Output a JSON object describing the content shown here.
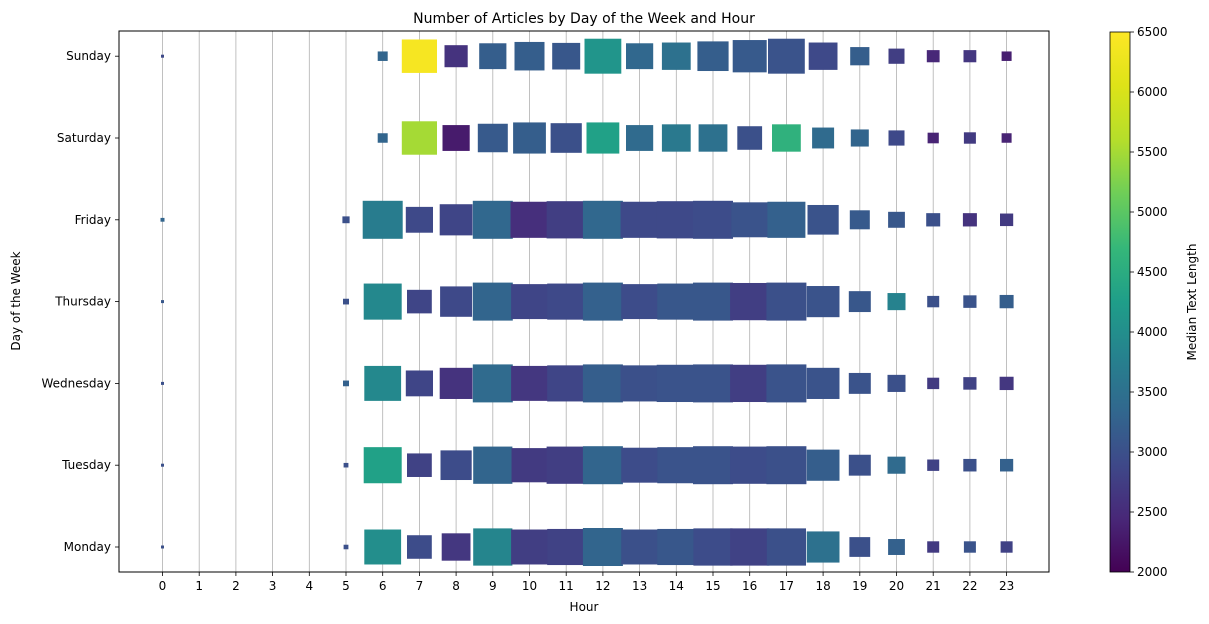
{
  "chart_data": {
    "type": "heatmap",
    "title": "Number of Articles by Day of the Week and Hour",
    "xlabel": "Hour",
    "ylabel": "Day of the Week",
    "x": [
      0,
      1,
      2,
      3,
      4,
      5,
      6,
      7,
      8,
      9,
      10,
      11,
      12,
      13,
      14,
      15,
      16,
      17,
      18,
      19,
      20,
      21,
      22,
      23
    ],
    "x_tick_labels": [
      "0",
      "1",
      "2",
      "3",
      "4",
      "5",
      "6",
      "7",
      "8",
      "9",
      "10",
      "11",
      "12",
      "13",
      "14",
      "15",
      "16",
      "17",
      "18",
      "19",
      "20",
      "21",
      "22",
      "23"
    ],
    "days": [
      "Monday",
      "Tuesday",
      "Wednesday",
      "Thursday",
      "Friday",
      "Saturday",
      "Sunday"
    ],
    "grid": "vertical",
    "colorbar": {
      "label": "Median Text Length",
      "min": 2000,
      "max": 6500,
      "ticks": [
        2000,
        2500,
        3000,
        3500,
        4000,
        4500,
        5000,
        5500,
        6000,
        6500
      ],
      "tick_labels": [
        "2000",
        "2500",
        "3000",
        "3500",
        "4000",
        "4500",
        "5000",
        "5500",
        "6000",
        "6500"
      ],
      "colormap": "viridis"
    },
    "size_note": "marker size proportional to number of articles (relative scale 0-1)",
    "series": [
      {
        "day": "Monday",
        "points": [
          {
            "hour": 0,
            "size": 0.06,
            "median": 3000
          },
          {
            "hour": 5,
            "size": 0.12,
            "median": 3000
          },
          {
            "hour": 6,
            "size": 0.92,
            "median": 4000
          },
          {
            "hour": 7,
            "size": 0.62,
            "median": 2950
          },
          {
            "hour": 8,
            "size": 0.72,
            "median": 2650
          },
          {
            "hour": 9,
            "size": 0.98,
            "median": 3850
          },
          {
            "hour": 10,
            "size": 0.92,
            "median": 2750
          },
          {
            "hour": 11,
            "size": 0.95,
            "median": 2800
          },
          {
            "hour": 12,
            "size": 1.0,
            "median": 3300
          },
          {
            "hour": 13,
            "size": 0.92,
            "median": 3000
          },
          {
            "hour": 14,
            "size": 0.95,
            "median": 3100
          },
          {
            "hour": 15,
            "size": 0.98,
            "median": 2950
          },
          {
            "hour": 16,
            "size": 0.98,
            "median": 2800
          },
          {
            "hour": 17,
            "size": 0.98,
            "median": 3000
          },
          {
            "hour": 18,
            "size": 0.82,
            "median": 3500
          },
          {
            "hour": 19,
            "size": 0.52,
            "median": 3000
          },
          {
            "hour": 20,
            "size": 0.42,
            "median": 3250
          },
          {
            "hour": 21,
            "size": 0.3,
            "median": 2700
          },
          {
            "hour": 22,
            "size": 0.3,
            "median": 3050
          },
          {
            "hour": 23,
            "size": 0.3,
            "median": 2800
          }
        ]
      },
      {
        "day": "Tuesday",
        "points": [
          {
            "hour": 0,
            "size": 0.06,
            "median": 3000
          },
          {
            "hour": 5,
            "size": 0.12,
            "median": 3000
          },
          {
            "hour": 6,
            "size": 0.95,
            "median": 4300
          },
          {
            "hour": 7,
            "size": 0.62,
            "median": 2800
          },
          {
            "hour": 8,
            "size": 0.78,
            "median": 2950
          },
          {
            "hour": 9,
            "size": 0.98,
            "median": 3300
          },
          {
            "hour": 10,
            "size": 0.9,
            "median": 2700
          },
          {
            "hour": 11,
            "size": 0.98,
            "median": 2750
          },
          {
            "hour": 12,
            "size": 1.0,
            "median": 3300
          },
          {
            "hour": 13,
            "size": 0.92,
            "median": 2950
          },
          {
            "hour": 14,
            "size": 0.95,
            "median": 3050
          },
          {
            "hour": 15,
            "size": 1.0,
            "median": 3050
          },
          {
            "hour": 16,
            "size": 0.98,
            "median": 2950
          },
          {
            "hour": 17,
            "size": 1.0,
            "median": 3000
          },
          {
            "hour": 18,
            "size": 0.82,
            "median": 3200
          },
          {
            "hour": 19,
            "size": 0.55,
            "median": 3000
          },
          {
            "hour": 20,
            "size": 0.45,
            "median": 3400
          },
          {
            "hour": 21,
            "size": 0.3,
            "median": 2800
          },
          {
            "hour": 22,
            "size": 0.33,
            "median": 3000
          },
          {
            "hour": 23,
            "size": 0.33,
            "median": 3250
          }
        ]
      },
      {
        "day": "Wednesday",
        "points": [
          {
            "hour": 0,
            "size": 0.06,
            "median": 3000
          },
          {
            "hour": 5,
            "size": 0.15,
            "median": 3250
          },
          {
            "hour": 6,
            "size": 0.92,
            "median": 3900
          },
          {
            "hour": 7,
            "size": 0.68,
            "median": 2850
          },
          {
            "hour": 8,
            "size": 0.82,
            "median": 2600
          },
          {
            "hour": 9,
            "size": 1.0,
            "median": 3400
          },
          {
            "hour": 10,
            "size": 0.92,
            "median": 2650
          },
          {
            "hour": 11,
            "size": 0.95,
            "median": 2850
          },
          {
            "hour": 12,
            "size": 1.0,
            "median": 3200
          },
          {
            "hour": 13,
            "size": 0.95,
            "median": 3000
          },
          {
            "hour": 14,
            "size": 0.98,
            "median": 3050
          },
          {
            "hour": 15,
            "size": 1.0,
            "median": 3050
          },
          {
            "hour": 16,
            "size": 0.98,
            "median": 2750
          },
          {
            "hour": 17,
            "size": 1.0,
            "median": 3050
          },
          {
            "hour": 18,
            "size": 0.82,
            "median": 3050
          },
          {
            "hour": 19,
            "size": 0.55,
            "median": 3050
          },
          {
            "hour": 20,
            "size": 0.45,
            "median": 3000
          },
          {
            "hour": 21,
            "size": 0.3,
            "median": 2700
          },
          {
            "hour": 22,
            "size": 0.33,
            "median": 2800
          },
          {
            "hour": 23,
            "size": 0.35,
            "median": 2650
          }
        ]
      },
      {
        "day": "Thursday",
        "points": [
          {
            "hour": 0,
            "size": 0.06,
            "median": 3100
          },
          {
            "hour": 5,
            "size": 0.15,
            "median": 3000
          },
          {
            "hour": 6,
            "size": 0.95,
            "median": 3900
          },
          {
            "hour": 7,
            "size": 0.62,
            "median": 2850
          },
          {
            "hour": 8,
            "size": 0.8,
            "median": 2900
          },
          {
            "hour": 9,
            "size": 1.0,
            "median": 3300
          },
          {
            "hour": 10,
            "size": 0.92,
            "median": 2850
          },
          {
            "hour": 11,
            "size": 0.95,
            "median": 2900
          },
          {
            "hour": 12,
            "size": 1.0,
            "median": 3250
          },
          {
            "hour": 13,
            "size": 0.92,
            "median": 2950
          },
          {
            "hour": 14,
            "size": 0.95,
            "median": 3100
          },
          {
            "hour": 15,
            "size": 1.0,
            "median": 3100
          },
          {
            "hour": 16,
            "size": 0.98,
            "median": 2750
          },
          {
            "hour": 17,
            "size": 1.0,
            "median": 3000
          },
          {
            "hour": 18,
            "size": 0.82,
            "median": 3050
          },
          {
            "hour": 19,
            "size": 0.55,
            "median": 3100
          },
          {
            "hour": 20,
            "size": 0.45,
            "median": 3800
          },
          {
            "hour": 21,
            "size": 0.3,
            "median": 3000
          },
          {
            "hour": 22,
            "size": 0.33,
            "median": 3050
          },
          {
            "hour": 23,
            "size": 0.35,
            "median": 3200
          }
        ]
      },
      {
        "day": "Friday",
        "points": [
          {
            "hour": 0,
            "size": 0.1,
            "median": 3300
          },
          {
            "hour": 5,
            "size": 0.18,
            "median": 3000
          },
          {
            "hour": 6,
            "size": 1.0,
            "median": 3700
          },
          {
            "hour": 7,
            "size": 0.68,
            "median": 2900
          },
          {
            "hour": 8,
            "size": 0.82,
            "median": 2850
          },
          {
            "hour": 9,
            "size": 1.0,
            "median": 3350
          },
          {
            "hour": 10,
            "size": 0.95,
            "median": 2550
          },
          {
            "hour": 11,
            "size": 0.98,
            "median": 2750
          },
          {
            "hour": 12,
            "size": 1.0,
            "median": 3350
          },
          {
            "hour": 13,
            "size": 0.95,
            "median": 2900
          },
          {
            "hour": 14,
            "size": 0.98,
            "median": 2900
          },
          {
            "hour": 15,
            "size": 1.0,
            "median": 2950
          },
          {
            "hour": 16,
            "size": 0.92,
            "median": 3050
          },
          {
            "hour": 17,
            "size": 0.95,
            "median": 3250
          },
          {
            "hour": 18,
            "size": 0.78,
            "median": 3050
          },
          {
            "hour": 19,
            "size": 0.5,
            "median": 3150
          },
          {
            "hour": 20,
            "size": 0.42,
            "median": 3100
          },
          {
            "hour": 21,
            "size": 0.35,
            "median": 3000
          },
          {
            "hour": 22,
            "size": 0.35,
            "median": 2600
          },
          {
            "hour": 23,
            "size": 0.33,
            "median": 2700
          }
        ]
      },
      {
        "day": "Saturday",
        "points": [
          {
            "hour": 6,
            "size": 0.25,
            "median": 3300
          },
          {
            "hour": 7,
            "size": 0.88,
            "median": 5500
          },
          {
            "hour": 8,
            "size": 0.68,
            "median": 2300
          },
          {
            "hour": 9,
            "size": 0.75,
            "median": 3150
          },
          {
            "hour": 10,
            "size": 0.82,
            "median": 3200
          },
          {
            "hour": 11,
            "size": 0.78,
            "median": 3000
          },
          {
            "hour": 12,
            "size": 0.82,
            "median": 4300
          },
          {
            "hour": 13,
            "size": 0.68,
            "median": 3400
          },
          {
            "hour": 14,
            "size": 0.72,
            "median": 3650
          },
          {
            "hour": 15,
            "size": 0.72,
            "median": 3500
          },
          {
            "hour": 16,
            "size": 0.62,
            "median": 3000
          },
          {
            "hour": 17,
            "size": 0.72,
            "median": 4600
          },
          {
            "hour": 18,
            "size": 0.55,
            "median": 3400
          },
          {
            "hour": 19,
            "size": 0.45,
            "median": 3300
          },
          {
            "hour": 20,
            "size": 0.4,
            "median": 2900
          },
          {
            "hour": 21,
            "size": 0.28,
            "median": 2400
          },
          {
            "hour": 22,
            "size": 0.3,
            "median": 2700
          },
          {
            "hour": 23,
            "size": 0.25,
            "median": 2400
          }
        ]
      },
      {
        "day": "Sunday",
        "points": [
          {
            "hour": 0,
            "size": 0.06,
            "median": 2900
          },
          {
            "hour": 6,
            "size": 0.25,
            "median": 3300
          },
          {
            "hour": 7,
            "size": 0.88,
            "median": 6400
          },
          {
            "hour": 8,
            "size": 0.58,
            "median": 2600
          },
          {
            "hour": 9,
            "size": 0.68,
            "median": 3200
          },
          {
            "hour": 10,
            "size": 0.75,
            "median": 3200
          },
          {
            "hour": 11,
            "size": 0.7,
            "median": 3100
          },
          {
            "hour": 12,
            "size": 0.92,
            "median": 4100
          },
          {
            "hour": 13,
            "size": 0.68,
            "median": 3350
          },
          {
            "hour": 14,
            "size": 0.72,
            "median": 3500
          },
          {
            "hour": 15,
            "size": 0.78,
            "median": 3200
          },
          {
            "hour": 16,
            "size": 0.85,
            "median": 3150
          },
          {
            "hour": 17,
            "size": 0.92,
            "median": 3050
          },
          {
            "hour": 18,
            "size": 0.72,
            "median": 2900
          },
          {
            "hour": 19,
            "size": 0.48,
            "median": 3200
          },
          {
            "hour": 20,
            "size": 0.4,
            "median": 2750
          },
          {
            "hour": 21,
            "size": 0.32,
            "median": 2450
          },
          {
            "hour": 22,
            "size": 0.32,
            "median": 2650
          },
          {
            "hour": 23,
            "size": 0.25,
            "median": 2350
          }
        ]
      }
    ]
  }
}
